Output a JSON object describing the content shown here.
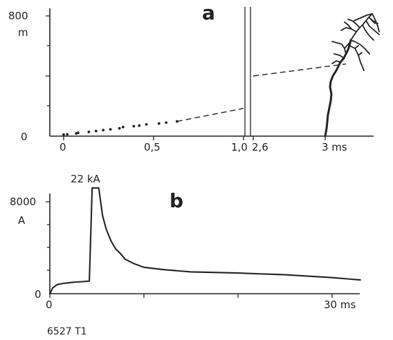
{
  "chart_data": [
    {
      "panel_label": "a",
      "type": "scatter",
      "ylabel": "m",
      "ytick_labels": [
        "800",
        "0"
      ],
      "ylim": [
        0,
        800
      ],
      "left_segment": {
        "xlim": [
          0,
          1.0
        ],
        "xtick_labels": [
          "0",
          "0,5",
          "1,0"
        ],
        "points": [
          {
            "x": 0.0,
            "y": 10
          },
          {
            "x": 0.02,
            "y": 12
          },
          {
            "x": 0.07,
            "y": 18
          },
          {
            "x": 0.08,
            "y": 22
          },
          {
            "x": 0.14,
            "y": 28
          },
          {
            "x": 0.18,
            "y": 34
          },
          {
            "x": 0.22,
            "y": 40
          },
          {
            "x": 0.26,
            "y": 45
          },
          {
            "x": 0.31,
            "y": 52
          },
          {
            "x": 0.33,
            "y": 60
          },
          {
            "x": 0.39,
            "y": 66
          },
          {
            "x": 0.42,
            "y": 70
          },
          {
            "x": 0.46,
            "y": 78
          },
          {
            "x": 0.53,
            "y": 84
          },
          {
            "x": 0.57,
            "y": 90
          },
          {
            "x": 0.63,
            "y": 98
          }
        ],
        "dashed_extrapolation": {
          "x": [
            0.63,
            1.0
          ],
          "y": [
            98,
            185
          ]
        }
      },
      "right_segment": {
        "xlim": [
          2.6,
          3.3
        ],
        "xtick_labels": [
          "2,6",
          "3 ms"
        ],
        "dashed_link_y": [
          400,
          480
        ],
        "leader_channel": {
          "x_start": 3.0,
          "y_start": 0,
          "x_end": 3.28,
          "y_end": 800
        }
      }
    },
    {
      "panel_label": "b",
      "type": "line",
      "ylabel": "A",
      "ytick_labels": [
        "8000",
        "0"
      ],
      "ylim": [
        0,
        8000
      ],
      "xlim": [
        0,
        33
      ],
      "xtick_labels": [
        "0",
        "30 ms"
      ],
      "peak_annotation": "22 kA",
      "series": [
        {
          "x": [
            0,
            0.3,
            0.8,
            1.5,
            2.5,
            3.5,
            4.2,
            4.5,
            4.7,
            5.2,
            5.6,
            6.0,
            6.5,
            7.0,
            7.5,
            8.0,
            9.0,
            10,
            12,
            15,
            20,
            25,
            30,
            33
          ],
          "y": [
            0,
            500,
            800,
            900,
            1000,
            1050,
            1100,
            8000,
            8000,
            8000,
            6800,
            5600,
            4600,
            3900,
            3500,
            3000,
            2600,
            2300,
            2100,
            1900,
            1800,
            1650,
            1400,
            1200
          ]
        }
      ]
    }
  ],
  "caption": "6527  T1"
}
